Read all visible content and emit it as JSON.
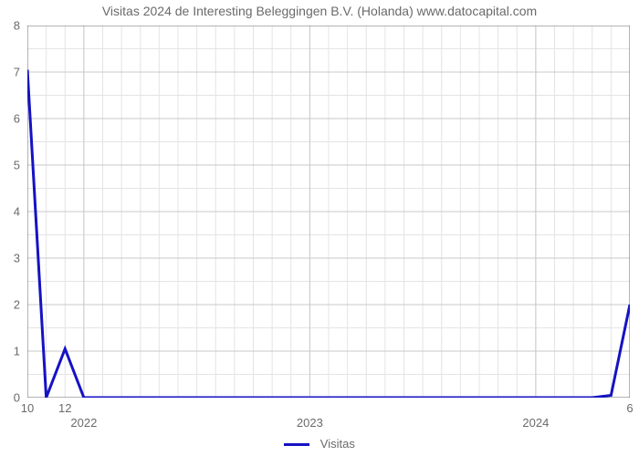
{
  "chart": {
    "type": "line",
    "title": "Visitas 2024 de Interesting Beleggingen B.V. (Holanda) www.datocapital.com",
    "title_fontsize": 14,
    "title_color": "#6a6a6a",
    "background_color": "#ffffff",
    "plot_border_color": "#6a6a6a",
    "axis_label_color": "#6a6a6a",
    "axis_label_fontsize": 13,
    "grid": {
      "major_color": "#c8c8c8",
      "minor_color": "#e4e4e4",
      "line_width": 1
    },
    "y_axis": {
      "min": 0,
      "max": 8,
      "ticks": [
        0,
        1,
        2,
        3,
        4,
        5,
        6,
        7,
        8
      ]
    },
    "x_axis": {
      "x_min": 0,
      "x_max": 32,
      "major_grid_x": [
        0,
        3,
        15,
        27
      ],
      "minor_labels": [
        {
          "x": 0,
          "text": "10"
        },
        {
          "x": 2,
          "text": "12"
        },
        {
          "x": 32,
          "text": "6"
        }
      ],
      "major_labels": [
        {
          "x": 3,
          "text": "2022"
        },
        {
          "x": 15,
          "text": "2023"
        },
        {
          "x": 27,
          "text": "2024"
        }
      ],
      "minor_tick_xs": [
        0,
        1,
        2,
        3,
        4,
        5,
        6,
        7,
        8,
        9,
        10,
        11,
        12,
        13,
        14,
        15,
        16,
        17,
        18,
        19,
        20,
        21,
        22,
        23,
        24,
        25,
        26,
        27,
        28,
        29,
        30,
        31,
        32
      ]
    },
    "series": {
      "name": "Visitas",
      "color": "#1512c4",
      "line_width": 3,
      "points": [
        {
          "x": 0,
          "y": 7.05
        },
        {
          "x": 1,
          "y": 0
        },
        {
          "x": 2,
          "y": 1.05
        },
        {
          "x": 3,
          "y": 0
        },
        {
          "x": 30,
          "y": 0
        },
        {
          "x": 31,
          "y": 0.05
        },
        {
          "x": 32,
          "y": 2.0
        }
      ]
    },
    "legend": {
      "label": "Visitas",
      "swatch_color": "#1512c4"
    }
  }
}
